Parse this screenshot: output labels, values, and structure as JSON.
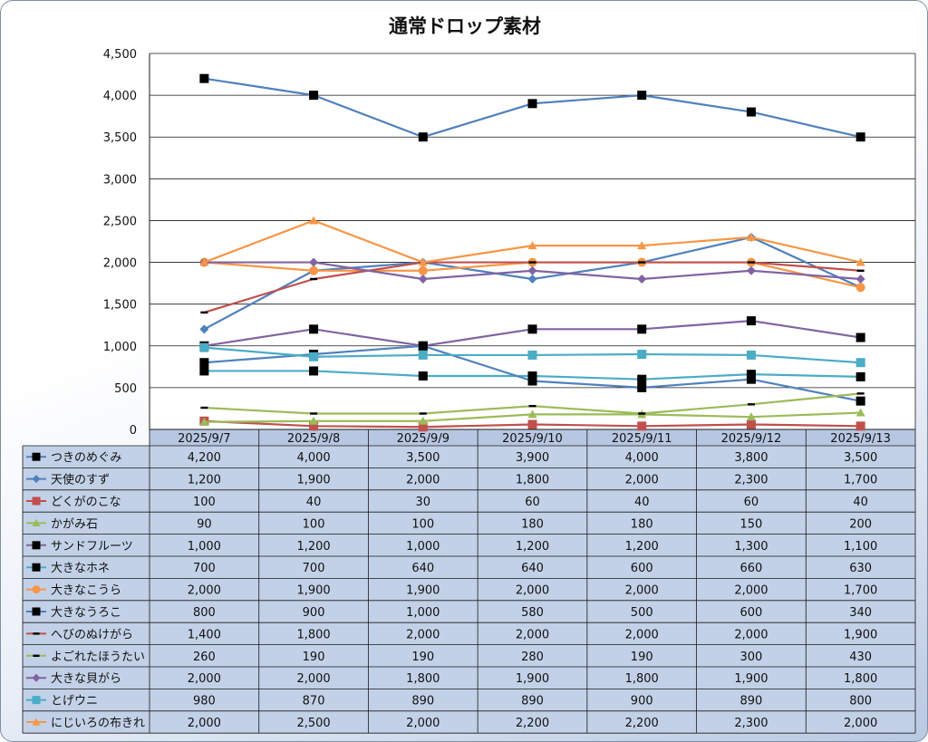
{
  "chart_data": {
    "type": "line",
    "title": "通常ドロップ素材",
    "xlabel": "",
    "ylabel": "",
    "ylim": [
      0,
      4500
    ],
    "yticks": [
      "0",
      "500",
      "1,000",
      "1,500",
      "2,000",
      "2,500",
      "3,000",
      "3,500",
      "4,000",
      "4,500"
    ],
    "grid": true,
    "legend": "data-table",
    "categories": [
      "2025/9/7",
      "2025/9/8",
      "2025/9/9",
      "2025/9/10",
      "2025/9/11",
      "2025/9/12",
      "2025/9/13"
    ],
    "series": [
      {
        "name": "つきのめぐみ",
        "color": "#4f81bd",
        "marker": "square",
        "values": [
          4200,
          4000,
          3500,
          3900,
          4000,
          3800,
          3500
        ],
        "labels": [
          "4,200",
          "4,000",
          "3,500",
          "3,900",
          "4,000",
          "3,800",
          "3,500"
        ]
      },
      {
        "name": "天使のすず",
        "color": "#4f81bd",
        "marker": "diamond",
        "values": [
          1200,
          1900,
          2000,
          1800,
          2000,
          2300,
          1700
        ],
        "labels": [
          "1,200",
          "1,900",
          "2,000",
          "1,800",
          "2,000",
          "2,300",
          "1,700"
        ]
      },
      {
        "name": "どくがのこな",
        "color": "#c0504d",
        "marker": "square-color",
        "values": [
          100,
          40,
          30,
          60,
          40,
          60,
          40
        ],
        "labels": [
          "100",
          "40",
          "30",
          "60",
          "40",
          "60",
          "40"
        ]
      },
      {
        "name": "かがみ石",
        "color": "#9bbb59",
        "marker": "triangle",
        "values": [
          90,
          100,
          100,
          180,
          180,
          150,
          200
        ],
        "labels": [
          "90",
          "100",
          "100",
          "180",
          "180",
          "150",
          "200"
        ]
      },
      {
        "name": "サンドフルーツ",
        "color": "#8064a2",
        "marker": "square",
        "values": [
          1000,
          1200,
          1000,
          1200,
          1200,
          1300,
          1100
        ],
        "labels": [
          "1,000",
          "1,200",
          "1,000",
          "1,200",
          "1,200",
          "1,300",
          "1,100"
        ]
      },
      {
        "name": "大きなホネ",
        "color": "#4bacc6",
        "marker": "square",
        "values": [
          700,
          700,
          640,
          640,
          600,
          660,
          630
        ],
        "labels": [
          "700",
          "700",
          "640",
          "640",
          "600",
          "660",
          "630"
        ]
      },
      {
        "name": "大きなこうら",
        "color": "#f79646",
        "marker": "circle",
        "values": [
          2000,
          1900,
          1900,
          2000,
          2000,
          2000,
          1700
        ],
        "labels": [
          "2,000",
          "1,900",
          "1,900",
          "2,000",
          "2,000",
          "2,000",
          "1,700"
        ]
      },
      {
        "name": "大きなうろこ",
        "color": "#4f81bd",
        "marker": "square",
        "values": [
          800,
          900,
          1000,
          580,
          500,
          600,
          340
        ],
        "labels": [
          "800",
          "900",
          "1,000",
          "580",
          "500",
          "600",
          "340"
        ]
      },
      {
        "name": "へびのぬけがら",
        "color": "#c0504d",
        "marker": "dash",
        "values": [
          1400,
          1800,
          2000,
          2000,
          2000,
          2000,
          1900
        ],
        "labels": [
          "1,400",
          "1,800",
          "2,000",
          "2,000",
          "2,000",
          "2,000",
          "1,900"
        ]
      },
      {
        "name": "よごれたほうたい",
        "color": "#9bbb59",
        "marker": "dash",
        "values": [
          260,
          190,
          190,
          280,
          190,
          300,
          430
        ],
        "labels": [
          "260",
          "190",
          "190",
          "280",
          "190",
          "300",
          "430"
        ]
      },
      {
        "name": "大きな貝がら",
        "color": "#8064a2",
        "marker": "diamond",
        "values": [
          2000,
          2000,
          1800,
          1900,
          1800,
          1900,
          1800
        ],
        "labels": [
          "2,000",
          "2,000",
          "1,800",
          "1,900",
          "1,800",
          "1,900",
          "1,800"
        ]
      },
      {
        "name": "とげウニ",
        "color": "#4bacc6",
        "marker": "square-color",
        "values": [
          980,
          870,
          890,
          890,
          900,
          890,
          800
        ],
        "labels": [
          "980",
          "870",
          "890",
          "890",
          "900",
          "890",
          "800"
        ]
      },
      {
        "name": "にじいろの布きれ",
        "color": "#f79646",
        "marker": "triangle",
        "values": [
          2000,
          2500,
          2000,
          2200,
          2200,
          2300,
          2000
        ],
        "labels": [
          "2,000",
          "2,500",
          "2,000",
          "2,200",
          "2,200",
          "2,300",
          "2,000"
        ]
      }
    ]
  }
}
